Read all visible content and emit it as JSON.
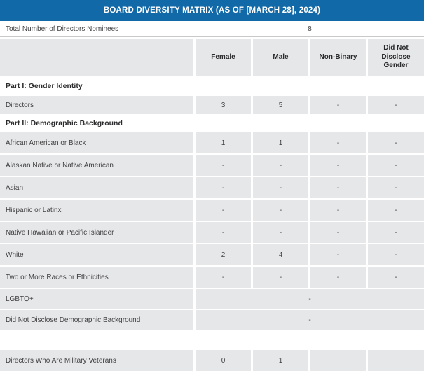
{
  "title": "BOARD DIVERSITY MATRIX (AS OF [MARCH 28], 2024)",
  "colors": {
    "banner_bg": "#1269a8",
    "banner_text": "#ffffff",
    "row_bg": "#e6e7e8",
    "body_text": "#414042"
  },
  "total": {
    "label": "Total Number of Directors Nominees",
    "value": "8"
  },
  "columns": {
    "c1": "Female",
    "c2": "Male",
    "c3": "Non-Binary",
    "c4": "Did Not Disclose Gender"
  },
  "sections": {
    "part1": "Part I: Gender Identity",
    "part2": "Part II: Demographic Background"
  },
  "rows": [
    {
      "label": "Directors",
      "values": [
        "3",
        "5",
        "-",
        "-"
      ]
    },
    {
      "label": "African American or Black",
      "values": [
        "1",
        "1",
        "-",
        "-"
      ]
    },
    {
      "label": "Alaskan Native or Native American",
      "values": [
        "-",
        "-",
        "-",
        "-"
      ]
    },
    {
      "label": "Asian",
      "values": [
        "-",
        "-",
        "-",
        "-"
      ]
    },
    {
      "label": "Hispanic or Latinx",
      "values": [
        "-",
        "-",
        "-",
        "-"
      ]
    },
    {
      "label": "Native Hawaiian or Pacific Islander",
      "values": [
        "-",
        "-",
        "-",
        "-"
      ]
    },
    {
      "label": "White",
      "values": [
        "2",
        "4",
        "-",
        "-"
      ]
    },
    {
      "label": "Two or More Races or Ethnicities",
      "values": [
        "-",
        "-",
        "-",
        "-"
      ]
    },
    {
      "label": "LGBTQ+",
      "merged_value": "-"
    },
    {
      "label": "Did Not Disclose Demographic Background",
      "merged_value": "-"
    },
    {
      "label": "Directors Who Are Military Veterans",
      "values": [
        "0",
        "1",
        "",
        ""
      ]
    }
  ]
}
